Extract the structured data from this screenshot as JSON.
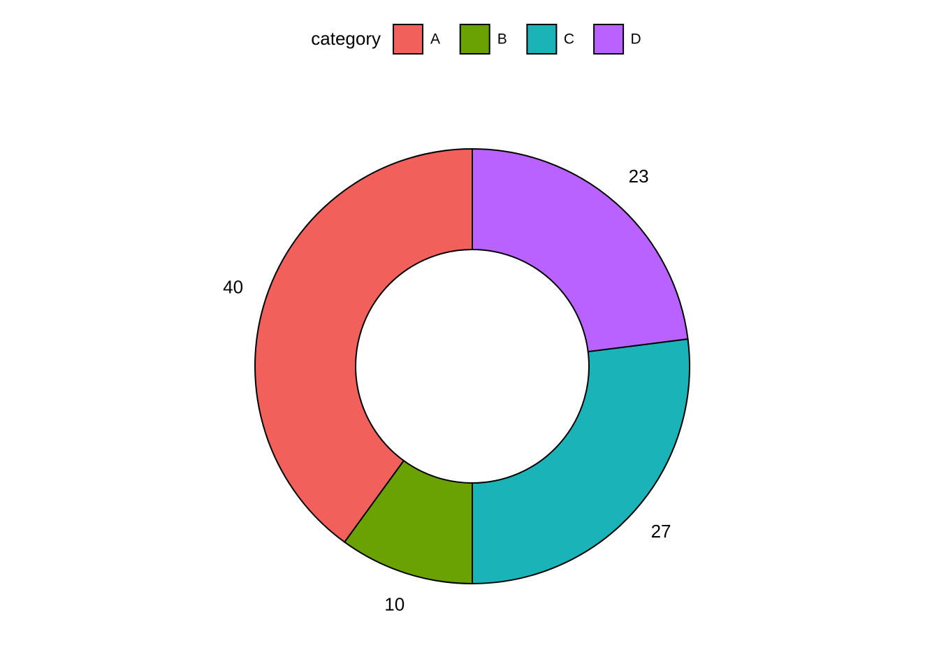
{
  "chart_data": {
    "type": "donut",
    "legend_title": "category",
    "legend_position": "top",
    "categories": [
      "A",
      "B",
      "C",
      "D"
    ],
    "values": [
      40,
      10,
      27,
      23
    ],
    "colors": [
      "#F2605C",
      "#6AA204",
      "#1AB3B8",
      "#B962FF"
    ]
  }
}
